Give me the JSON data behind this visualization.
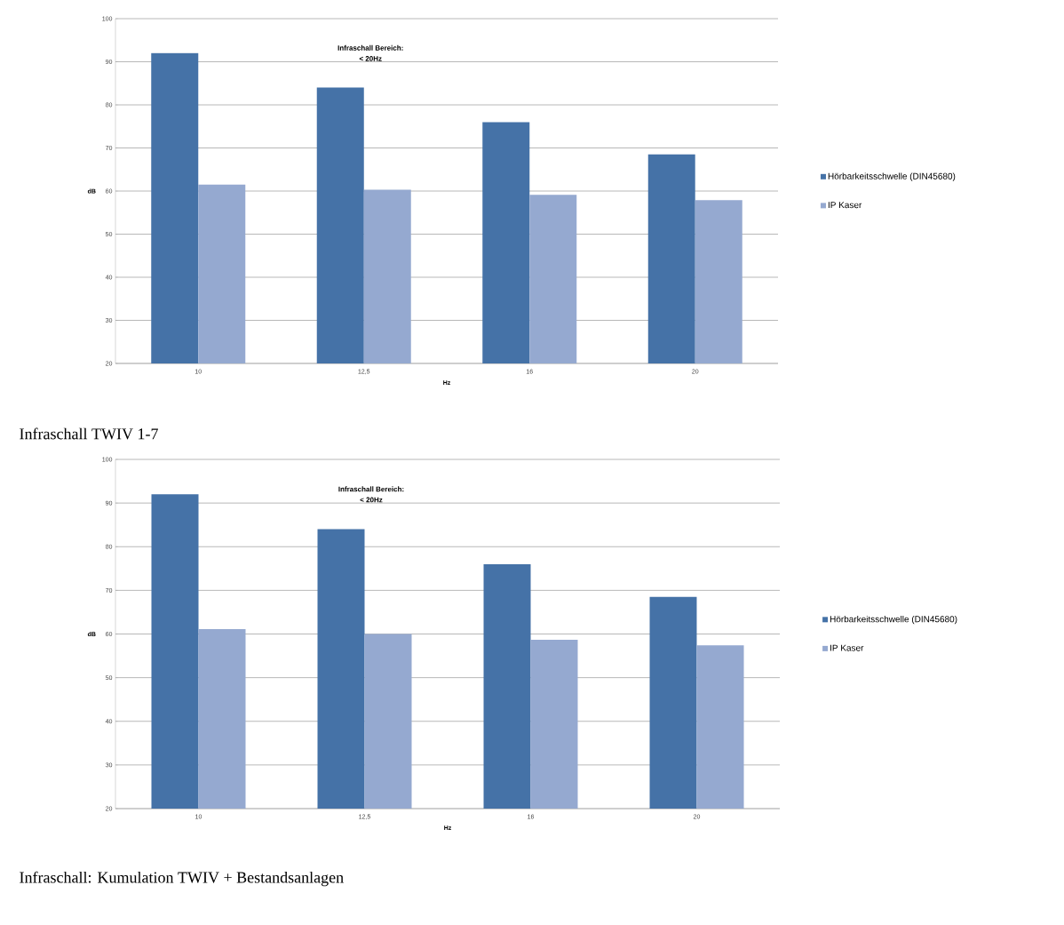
{
  "chart_data": [
    {
      "type": "bar",
      "title": "Infraschall TWIV 1-7",
      "xlabel": "Hz",
      "ylabel": "dB",
      "annotations": [
        "Infraschall Bereich:",
        "< 20Hz"
      ],
      "categories": [
        "10",
        "12,5",
        "16",
        "20"
      ],
      "series": [
        {
          "name": "Hörbarkeitsschwelle (DIN45680)",
          "color": "#4572a7",
          "values": [
            92,
            84,
            76,
            68.5
          ]
        },
        {
          "name": "IP Kaser",
          "color": "#95a9d0",
          "values": [
            61.5,
            60.3,
            59.1,
            57.9
          ]
        }
      ],
      "ylim": [
        20,
        100
      ],
      "yticks": [
        20,
        30,
        40,
        50,
        60,
        70,
        80,
        90,
        100
      ],
      "grid": "y",
      "legend": "right"
    },
    {
      "type": "bar",
      "title": "Infraschall: Kumulation TWIV + Bestandsanlagen",
      "xlabel": "Hz",
      "ylabel": "dB",
      "annotations": [
        "Infraschall Bereich:",
        "< 20Hz"
      ],
      "categories": [
        "10",
        "12,5",
        "16",
        "20"
      ],
      "series": [
        {
          "name": "Hörbarkeitsschwelle (DIN45680)",
          "color": "#4572a7",
          "values": [
            92,
            84,
            76,
            68.5
          ]
        },
        {
          "name": "IP Kaser",
          "color": "#95a9d0",
          "values": [
            61.1,
            60.0,
            58.7,
            57.4
          ]
        }
      ],
      "ylim": [
        20,
        100
      ],
      "yticks": [
        20,
        30,
        40,
        50,
        60,
        70,
        80,
        90,
        100
      ],
      "grid": "y",
      "legend": "right"
    }
  ]
}
